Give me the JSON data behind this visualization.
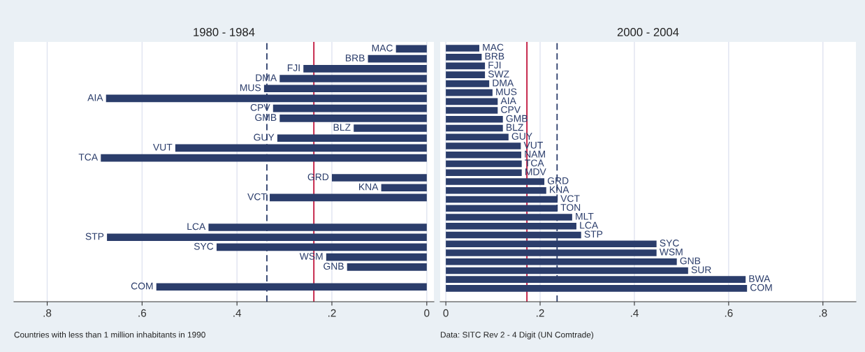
{
  "chart_data": [
    {
      "type": "bar",
      "orientation": "horizontal",
      "title": "1980 - 1984",
      "categories": [
        "MAC",
        "BRB",
        "FJI",
        "DMA",
        "MUS",
        "AIA",
        "CPV",
        "GMB",
        "BLZ",
        "GUY",
        "VUT",
        "TCA",
        null,
        "GRD",
        "KNA",
        "VCT",
        null,
        null,
        "LCA",
        "STP",
        "SYC",
        "WSM",
        "GNB",
        null,
        "COM"
      ],
      "values": [
        0.065,
        0.124,
        0.26,
        0.31,
        0.343,
        0.676,
        0.324,
        0.31,
        0.154,
        0.315,
        0.53,
        0.687,
        null,
        0.2,
        0.096,
        0.331,
        null,
        null,
        0.46,
        0.674,
        0.443,
        0.212,
        0.168,
        null,
        0.57
      ],
      "color": "#2b3d6b",
      "xlim": [
        0.87,
        -0.015
      ],
      "xticks": [
        {
          "value": 0.8,
          "label": ".8"
        },
        {
          "value": 0.6,
          "label": ".6"
        },
        {
          "value": 0.4,
          "label": ".4"
        },
        {
          "value": 0.2,
          "label": ".2"
        },
        0
      ],
      "grid": "x",
      "tick_labels": "x",
      "ref_lines": [
        {
          "axis": "x",
          "value": 0.238,
          "color": "#c0143c",
          "line_style": "solid"
        },
        {
          "axis": "x",
          "value": 0.337,
          "color": "#2b3d6b",
          "line_style": "dashed"
        }
      ],
      "annotations": [
        "Countries with less than 1 million inhabitants in 1990"
      ]
    },
    {
      "type": "bar",
      "orientation": "horizontal",
      "title": "2000 - 2004",
      "categories": [
        "MAC",
        "BRB",
        "FJI",
        "SWZ",
        "DMA",
        "MUS",
        "AIA",
        "CPV",
        "GMB",
        "BLZ",
        "GUY",
        "VUT",
        "NAM",
        "TCA",
        "MDV",
        "GRD",
        "KNA",
        "VCT",
        "TON",
        "MLT",
        "LCA",
        "STP",
        "SYC",
        "WSM",
        "GNB",
        "SUR",
        "BWA",
        "COM"
      ],
      "values": [
        0.071,
        0.076,
        0.083,
        0.083,
        0.092,
        0.099,
        0.11,
        0.11,
        0.121,
        0.121,
        0.133,
        0.159,
        0.16,
        0.161,
        0.161,
        0.209,
        0.213,
        0.237,
        0.237,
        0.268,
        0.277,
        0.287,
        0.447,
        0.447,
        0.49,
        0.514,
        0.636,
        0.639
      ],
      "color": "#2b3d6b",
      "xlim": [
        -0.012,
        0.87
      ],
      "xticks": [
        0,
        {
          "value": 0.2,
          "label": ".2"
        },
        {
          "value": 0.4,
          "label": ".4"
        },
        {
          "value": 0.6,
          "label": ".6"
        },
        {
          "value": 0.8,
          "label": ".8"
        }
      ],
      "grid": "x",
      "tick_labels": "x",
      "ref_lines": [
        {
          "axis": "x",
          "value": 0.172,
          "color": "#c0143c",
          "line_style": "solid"
        },
        {
          "axis": "x",
          "value": 0.236,
          "color": "#2b3d6b",
          "line_style": "dashed"
        }
      ],
      "annotations": [
        "Data: SITC Rev 2 - 4 Digit (UN Comtrade)"
      ]
    }
  ]
}
